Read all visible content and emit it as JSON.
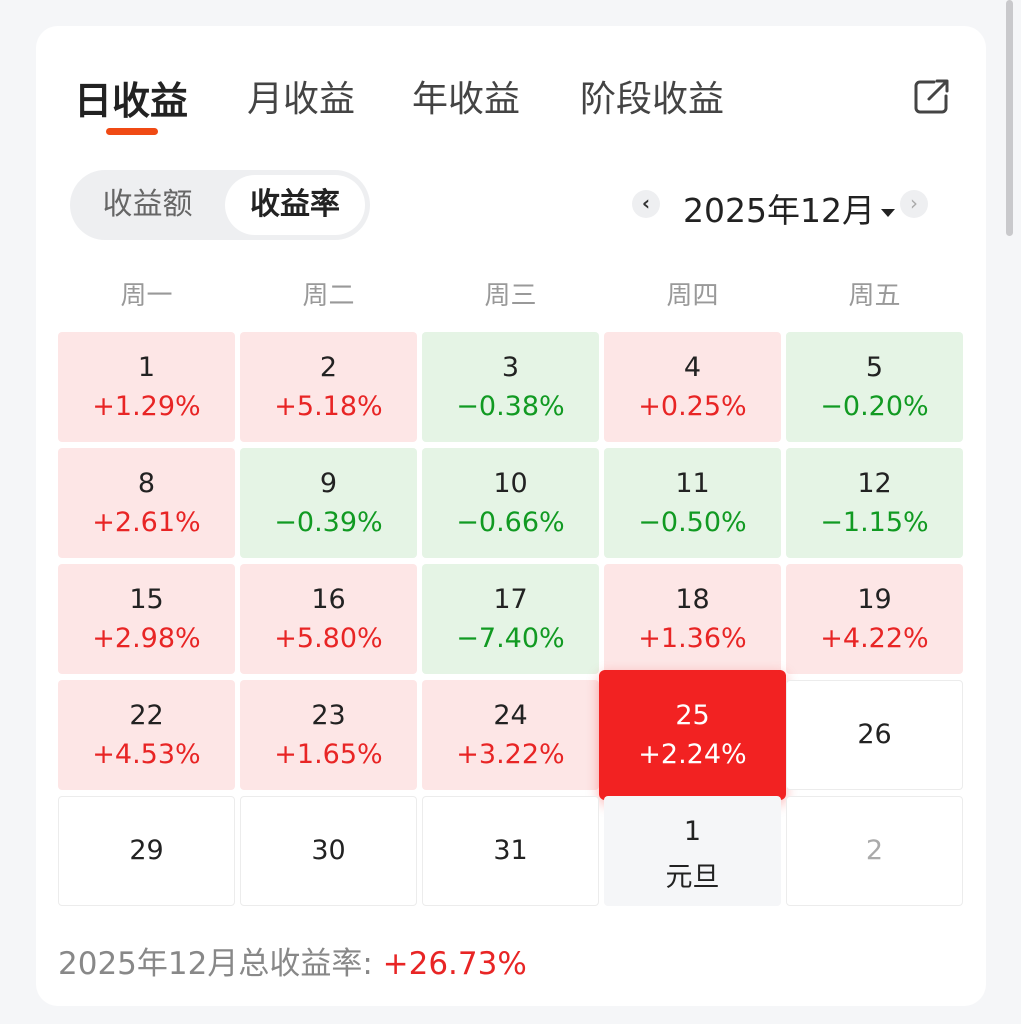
{
  "tabs": [
    "日收益",
    "月收益",
    "年收益",
    "阶段收益"
  ],
  "active_tab": 0,
  "segmented": {
    "options": [
      "收益额",
      "收益率"
    ],
    "active": 1
  },
  "month": {
    "label": "2025年12月",
    "prev": "‹",
    "next": "›"
  },
  "weekdays": [
    "周一",
    "周二",
    "周三",
    "周四",
    "周五"
  ],
  "calendar": [
    {
      "day": "1",
      "pct": "+1.29%",
      "trend": "up"
    },
    {
      "day": "2",
      "pct": "+5.18%",
      "trend": "up"
    },
    {
      "day": "3",
      "pct": "−0.38%",
      "trend": "down"
    },
    {
      "day": "4",
      "pct": "+0.25%",
      "trend": "up"
    },
    {
      "day": "5",
      "pct": "−0.20%",
      "trend": "down"
    },
    {
      "day": "8",
      "pct": "+2.61%",
      "trend": "up"
    },
    {
      "day": "9",
      "pct": "−0.39%",
      "trend": "down"
    },
    {
      "day": "10",
      "pct": "−0.66%",
      "trend": "down"
    },
    {
      "day": "11",
      "pct": "−0.50%",
      "trend": "down"
    },
    {
      "day": "12",
      "pct": "−1.15%",
      "trend": "down"
    },
    {
      "day": "15",
      "pct": "+2.98%",
      "trend": "up"
    },
    {
      "day": "16",
      "pct": "+5.80%",
      "trend": "up"
    },
    {
      "day": "17",
      "pct": "−7.40%",
      "trend": "down"
    },
    {
      "day": "18",
      "pct": "+1.36%",
      "trend": "up"
    },
    {
      "day": "19",
      "pct": "+4.22%",
      "trend": "up"
    },
    {
      "day": "22",
      "pct": "+4.53%",
      "trend": "up"
    },
    {
      "day": "23",
      "pct": "+1.65%",
      "trend": "up"
    },
    {
      "day": "24",
      "pct": "+3.22%",
      "trend": "up"
    },
    {
      "day": "25",
      "pct": "+2.24%",
      "trend": "selected"
    },
    {
      "day": "26",
      "pct": "",
      "trend": "empty"
    },
    {
      "day": "29",
      "pct": "",
      "trend": "empty"
    },
    {
      "day": "30",
      "pct": "",
      "trend": "empty"
    },
    {
      "day": "31",
      "pct": "",
      "trend": "empty"
    },
    {
      "day": "1",
      "pct": "",
      "note": "元旦",
      "trend": "holiday"
    },
    {
      "day": "2",
      "pct": "",
      "trend": "faded"
    }
  ],
  "total": {
    "label": "2025年12月总收益率: ",
    "value": "+26.73%"
  },
  "colors": {
    "accent": "#f04a14",
    "up": "#e82525",
    "down": "#119a22",
    "selected": "#f22222"
  },
  "icons": {
    "share": "share-external-icon"
  }
}
